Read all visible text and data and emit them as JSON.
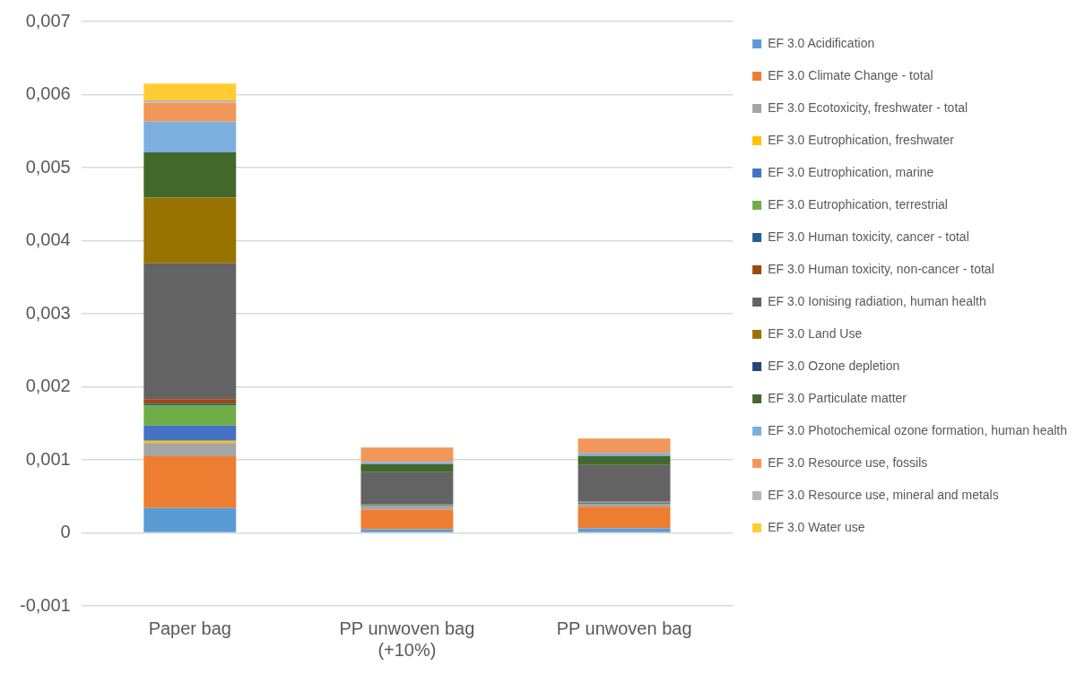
{
  "chart_data": {
    "type": "bar",
    "stacked": true,
    "categories": [
      "Paper bag",
      "PP unwoven bag (+10%)",
      "PP unwoven bag"
    ],
    "series": [
      {
        "name": "EF 3.0 Acidification",
        "color": "#5b9bd5",
        "values": [
          0.00034,
          5e-05,
          6e-05
        ]
      },
      {
        "name": "EF 3.0 Climate Change - total",
        "color": "#ed7d31",
        "values": [
          0.00071,
          0.00027,
          0.0003
        ]
      },
      {
        "name": "EF 3.0 Ecotoxicity, freshwater - total",
        "color": "#a5a5a5",
        "values": [
          0.00018,
          4e-05,
          4e-05
        ]
      },
      {
        "name": "EF 3.0 Eutrophication, freshwater",
        "color": "#ffc000",
        "values": [
          3e-05,
          0,
          0
        ]
      },
      {
        "name": "EF 3.0 Eutrophication, marine",
        "color": "#4472c4",
        "values": [
          0.00021,
          1e-05,
          1e-05
        ]
      },
      {
        "name": "EF 3.0 Eutrophication, terrestrial",
        "color": "#70ad47",
        "values": [
          0.00028,
          1e-05,
          1e-05
        ]
      },
      {
        "name": "EF 3.0 Human toxicity, cancer - total",
        "color": "#255e91",
        "values": [
          2e-05,
          0,
          0
        ]
      },
      {
        "name": "EF 3.0 Human toxicity, non-cancer - total",
        "color": "#9e480e",
        "values": [
          6e-05,
          1e-05,
          1e-05
        ]
      },
      {
        "name": "EF 3.0 Ionising radiation, human health",
        "color": "#636363",
        "values": [
          0.00186,
          0.00044,
          0.0005
        ]
      },
      {
        "name": "EF 3.0 Land Use",
        "color": "#997300",
        "values": [
          0.0009,
          0,
          0
        ]
      },
      {
        "name": "EF 3.0 Ozone depletion",
        "color": "#264478",
        "values": [
          0,
          0,
          0
        ]
      },
      {
        "name": "EF 3.0 Particulate matter",
        "color": "#43682b",
        "values": [
          0.00062,
          0.00011,
          0.00012
        ]
      },
      {
        "name": "EF 3.0 Photochemical ozone formation, human health",
        "color": "#7cafdd",
        "values": [
          0.00042,
          3e-05,
          4e-05
        ]
      },
      {
        "name": "EF 3.0 Resource use, fossils",
        "color": "#f1975a",
        "values": [
          0.00026,
          0.0002,
          0.0002
        ]
      },
      {
        "name": "EF 3.0 Resource use, mineral and metals",
        "color": "#b7b7b7",
        "values": [
          3e-05,
          0,
          0
        ]
      },
      {
        "name": "EF 3.0 Water use",
        "color": "#ffcd33",
        "values": [
          0.00023,
          0,
          0
        ]
      }
    ],
    "ylim": [
      -0.001,
      0.007
    ],
    "yticks": [
      {
        "value": -0.001,
        "label": "-0,001"
      },
      {
        "value": 0,
        "label": "0"
      },
      {
        "value": 0.001,
        "label": "0,001"
      },
      {
        "value": 0.002,
        "label": "0,002"
      },
      {
        "value": 0.003,
        "label": "0,003"
      },
      {
        "value": 0.004,
        "label": "0,004"
      },
      {
        "value": 0.005,
        "label": "0,005"
      },
      {
        "value": 0.006,
        "label": "0,006"
      },
      {
        "value": 0.007,
        "label": "0,007"
      }
    ],
    "grid": "y",
    "legend": "right"
  }
}
